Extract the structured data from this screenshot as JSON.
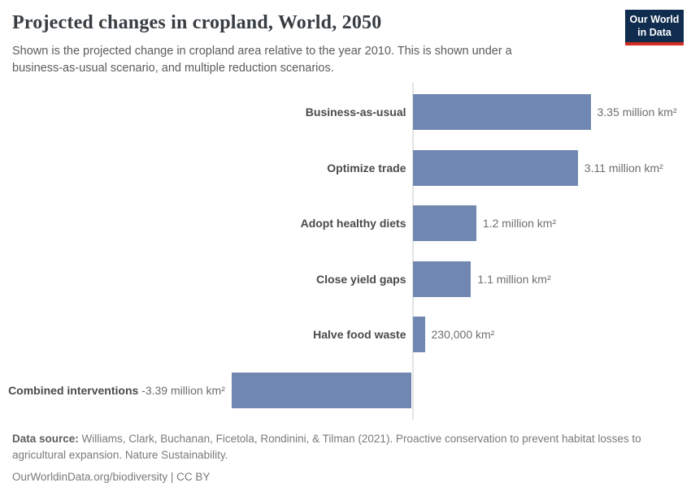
{
  "header": {
    "title": "Projected changes in cropland, World, 2050",
    "subtitle": "Shown is the projected change in cropland area relative to the year 2010. This is shown under a business-as-usual scenario, and multiple reduction scenarios.",
    "logo": {
      "line1": "Our World",
      "line2": "in Data"
    }
  },
  "chart_data": {
    "type": "bar",
    "orientation": "horizontal",
    "title": "Projected changes in cropland, World, 2050",
    "unit": "million km²",
    "categories": [
      "Business-as-usual",
      "Optimize trade",
      "Adopt healthy diets",
      "Close yield gaps",
      "Halve food waste",
      "Combined interventions"
    ],
    "values": [
      3.35,
      3.11,
      1.2,
      1.1,
      0.23,
      -3.39
    ],
    "value_labels": [
      "3.35 million km²",
      "3.11 million km²",
      "1.2 million km²",
      "1.1 million km²",
      "230,000 km²",
      "-3.39 million km²"
    ],
    "xlim": [
      -3.39,
      3.35
    ],
    "grid": false,
    "legend": false,
    "bar_color": "#7088b1",
    "axis_color": "#e4e4e4"
  },
  "footer": {
    "source_label": "Data source:",
    "source_text": " Williams, Clark, Buchanan, Ficetola, Rondinini, & Tilman (2021). Proactive conservation to prevent habitat losses to agricultural expansion. Nature Sustainability.",
    "link_text": "OurWorldinData.org/biodiversity | CC BY"
  }
}
